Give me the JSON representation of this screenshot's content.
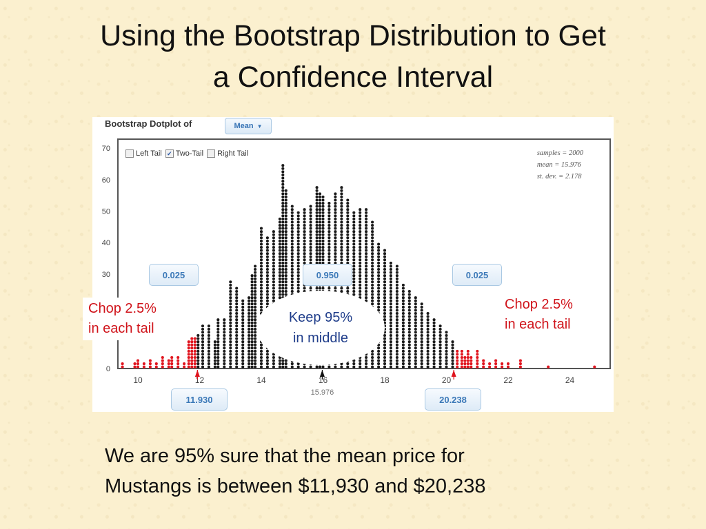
{
  "slide": {
    "title_line1": "Using the Bootstrap Distribution to Get",
    "title_line2": "a Confidence Interval",
    "conclusion_line1": "We are 95% sure that the mean price for",
    "conclusion_line2": "Mustangs is between $11,930 and $20,238"
  },
  "panel": {
    "header": "Bootstrap Dotplot of",
    "dropdown_label": "Mean",
    "options": {
      "left_tail": "Left Tail",
      "two_tail": "Two-Tail",
      "right_tail": "Right Tail"
    },
    "options_checked": {
      "left_tail": false,
      "two_tail": true,
      "right_tail": false
    },
    "stats": {
      "samples": "samples = 2000",
      "mean": "mean = 15.976",
      "sd": "st. dev. = 2.178"
    },
    "proportions": {
      "left": "0.025",
      "middle": "0.950",
      "right": "0.025"
    },
    "cutoffs": {
      "left": "11.930",
      "right": "20.238"
    },
    "mean_marker": "15.976"
  },
  "callouts": {
    "left_line1": "Chop 2.5%",
    "left_line2": "in each tail",
    "right_line1": "Chop 2.5%",
    "right_line2": "in each tail",
    "keep_line1": "Keep 95%",
    "keep_line2": "in middle"
  },
  "colors": {
    "tail_dots": "#e0141e",
    "middle_dots": "#1a1a1a",
    "accent": "#3c79b8",
    "callout_text": "#d0131a",
    "keep_text": "#1f3d8a"
  },
  "chart_data": {
    "type": "scatter",
    "subtype": "dotplot",
    "xlim": [
      9.5,
      25
    ],
    "ylim": [
      0,
      70
    ],
    "x_ticks": [
      10,
      12,
      14,
      16,
      18,
      20,
      22,
      24
    ],
    "y_ticks": [
      0,
      10,
      20,
      30,
      40,
      50,
      60,
      70
    ],
    "columns": [
      {
        "x": 9.5,
        "count": 2
      },
      {
        "x": 9.9,
        "count": 2
      },
      {
        "x": 10.0,
        "count": 3
      },
      {
        "x": 10.2,
        "count": 2
      },
      {
        "x": 10.4,
        "count": 3
      },
      {
        "x": 10.6,
        "count": 2
      },
      {
        "x": 10.8,
        "count": 4
      },
      {
        "x": 11.0,
        "count": 3
      },
      {
        "x": 11.1,
        "count": 4
      },
      {
        "x": 11.3,
        "count": 4
      },
      {
        "x": 11.5,
        "count": 2
      },
      {
        "x": 11.65,
        "count": 9
      },
      {
        "x": 11.75,
        "count": 10
      },
      {
        "x": 11.85,
        "count": 10
      },
      {
        "x": 11.95,
        "count": 11
      },
      {
        "x": 12.1,
        "count": 14
      },
      {
        "x": 12.3,
        "count": 14
      },
      {
        "x": 12.5,
        "count": 9
      },
      {
        "x": 12.6,
        "count": 16
      },
      {
        "x": 12.8,
        "count": 16
      },
      {
        "x": 13.0,
        "count": 28
      },
      {
        "x": 13.2,
        "count": 26
      },
      {
        "x": 13.4,
        "count": 22
      },
      {
        "x": 13.6,
        "count": 23
      },
      {
        "x": 13.7,
        "count": 30
      },
      {
        "x": 13.8,
        "count": 33
      },
      {
        "x": 14.0,
        "count": 45
      },
      {
        "x": 14.2,
        "count": 42
      },
      {
        "x": 14.4,
        "count": 44
      },
      {
        "x": 14.6,
        "count": 48
      },
      {
        "x": 14.7,
        "count": 65
      },
      {
        "x": 14.8,
        "count": 57
      },
      {
        "x": 15.0,
        "count": 52
      },
      {
        "x": 15.2,
        "count": 50
      },
      {
        "x": 15.4,
        "count": 51
      },
      {
        "x": 15.6,
        "count": 52
      },
      {
        "x": 15.8,
        "count": 58
      },
      {
        "x": 15.9,
        "count": 56
      },
      {
        "x": 16.0,
        "count": 55
      },
      {
        "x": 16.2,
        "count": 53
      },
      {
        "x": 16.4,
        "count": 56
      },
      {
        "x": 16.6,
        "count": 58
      },
      {
        "x": 16.8,
        "count": 54
      },
      {
        "x": 17.0,
        "count": 50
      },
      {
        "x": 17.2,
        "count": 51
      },
      {
        "x": 17.4,
        "count": 51
      },
      {
        "x": 17.6,
        "count": 47
      },
      {
        "x": 17.8,
        "count": 40
      },
      {
        "x": 18.0,
        "count": 38
      },
      {
        "x": 18.2,
        "count": 34
      },
      {
        "x": 18.4,
        "count": 33
      },
      {
        "x": 18.6,
        "count": 27
      },
      {
        "x": 18.8,
        "count": 25
      },
      {
        "x": 19.0,
        "count": 23
      },
      {
        "x": 19.2,
        "count": 21
      },
      {
        "x": 19.4,
        "count": 18
      },
      {
        "x": 19.6,
        "count": 16
      },
      {
        "x": 19.8,
        "count": 14
      },
      {
        "x": 20.0,
        "count": 12
      },
      {
        "x": 20.2,
        "count": 9
      },
      {
        "x": 20.35,
        "count": 6
      },
      {
        "x": 20.5,
        "count": 6
      },
      {
        "x": 20.6,
        "count": 4
      },
      {
        "x": 20.7,
        "count": 6
      },
      {
        "x": 20.8,
        "count": 4
      },
      {
        "x": 21.0,
        "count": 6
      },
      {
        "x": 21.2,
        "count": 3
      },
      {
        "x": 21.4,
        "count": 2
      },
      {
        "x": 21.6,
        "count": 3
      },
      {
        "x": 21.8,
        "count": 2
      },
      {
        "x": 22.0,
        "count": 2
      },
      {
        "x": 22.4,
        "count": 3
      },
      {
        "x": 23.3,
        "count": 1
      },
      {
        "x": 24.8,
        "count": 1
      }
    ],
    "lower_cutoff": 11.93,
    "upper_cutoff": 20.238,
    "mean": 15.976
  }
}
